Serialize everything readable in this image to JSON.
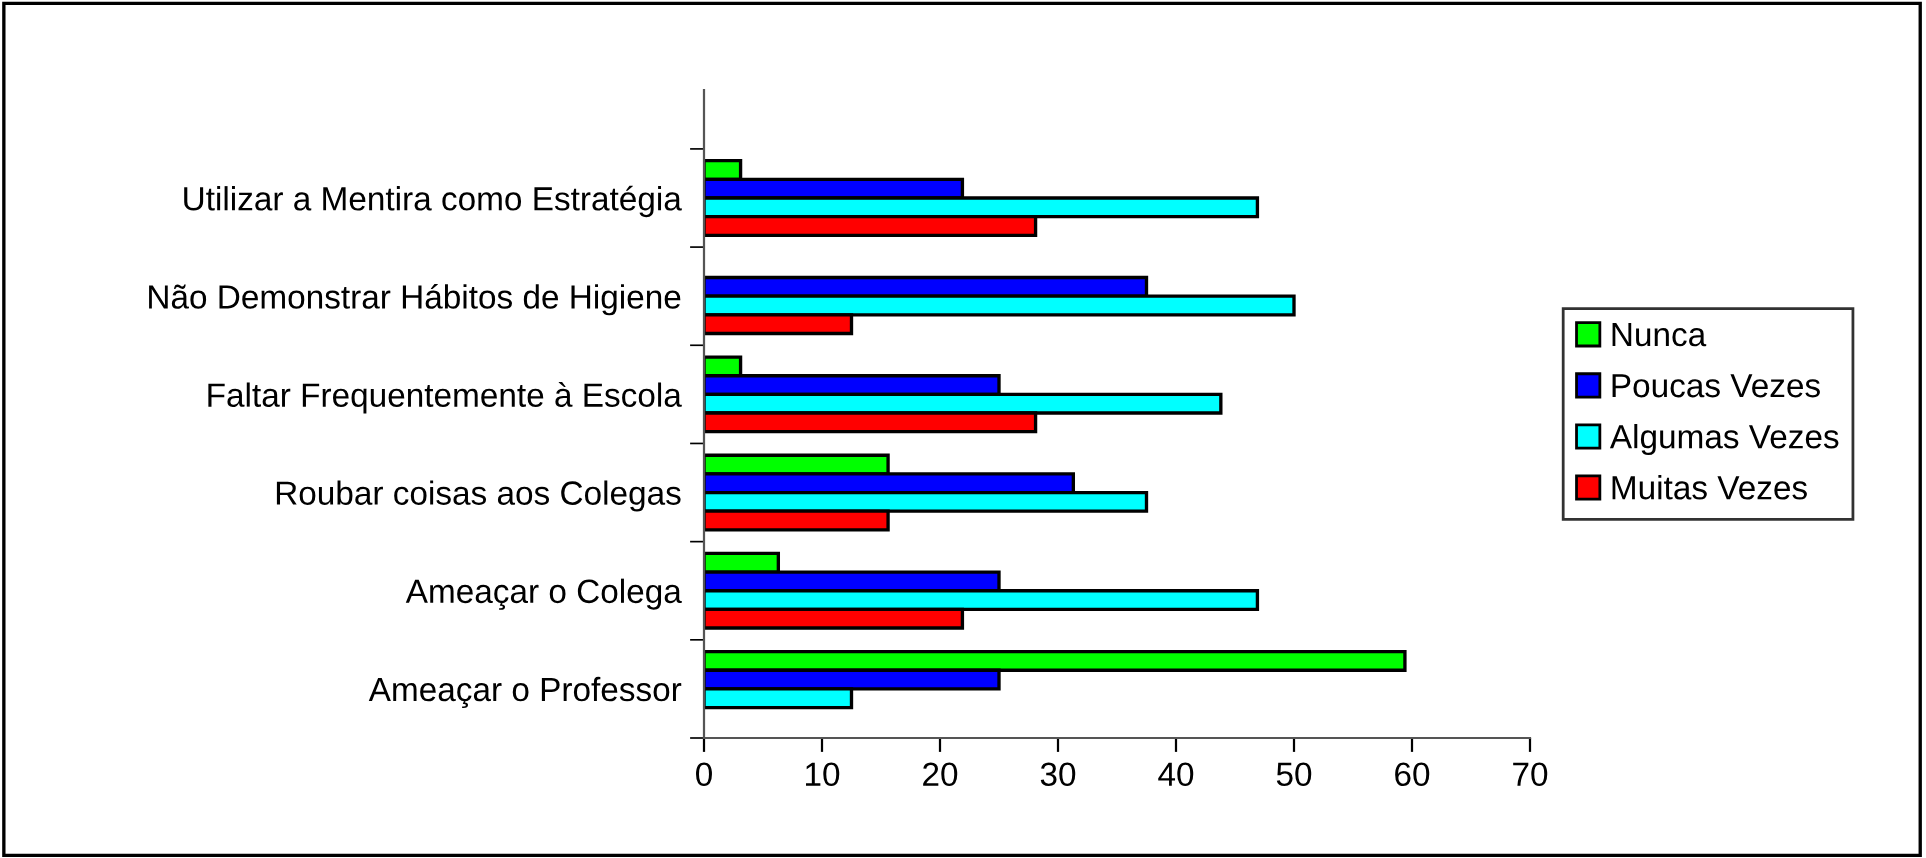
{
  "chart_data": {
    "type": "bar",
    "orientation": "horizontal",
    "categories": [
      "Utilizar a Mentira como Estratégia",
      "Não Demonstrar Hábitos de Higiene",
      "Faltar Frequentemente à Escola",
      "Roubar coisas aos Colegas",
      "Ameaçar o Colega",
      "Ameaçar o Professor"
    ],
    "series": [
      {
        "name": "Nunca",
        "color": "#00ff00",
        "values": [
          3.1,
          null,
          3.1,
          15.6,
          6.3,
          59.4
        ]
      },
      {
        "name": "Poucas Vezes",
        "color": "#0000ff",
        "values": [
          21.9,
          37.5,
          25.0,
          31.3,
          25.0,
          25.0
        ]
      },
      {
        "name": "Algumas Vezes",
        "color": "#00ffff",
        "values": [
          46.9,
          50.0,
          43.8,
          37.5,
          46.9,
          12.5
        ]
      },
      {
        "name": "Muitas Vezes",
        "color": "#ff0000",
        "values": [
          28.1,
          12.5,
          28.1,
          15.6,
          21.9,
          null
        ]
      }
    ],
    "xlim": [
      0,
      70
    ],
    "xticks": [
      0,
      10,
      20,
      30,
      40,
      50,
      60,
      70
    ],
    "grid": false,
    "legend": "right"
  }
}
